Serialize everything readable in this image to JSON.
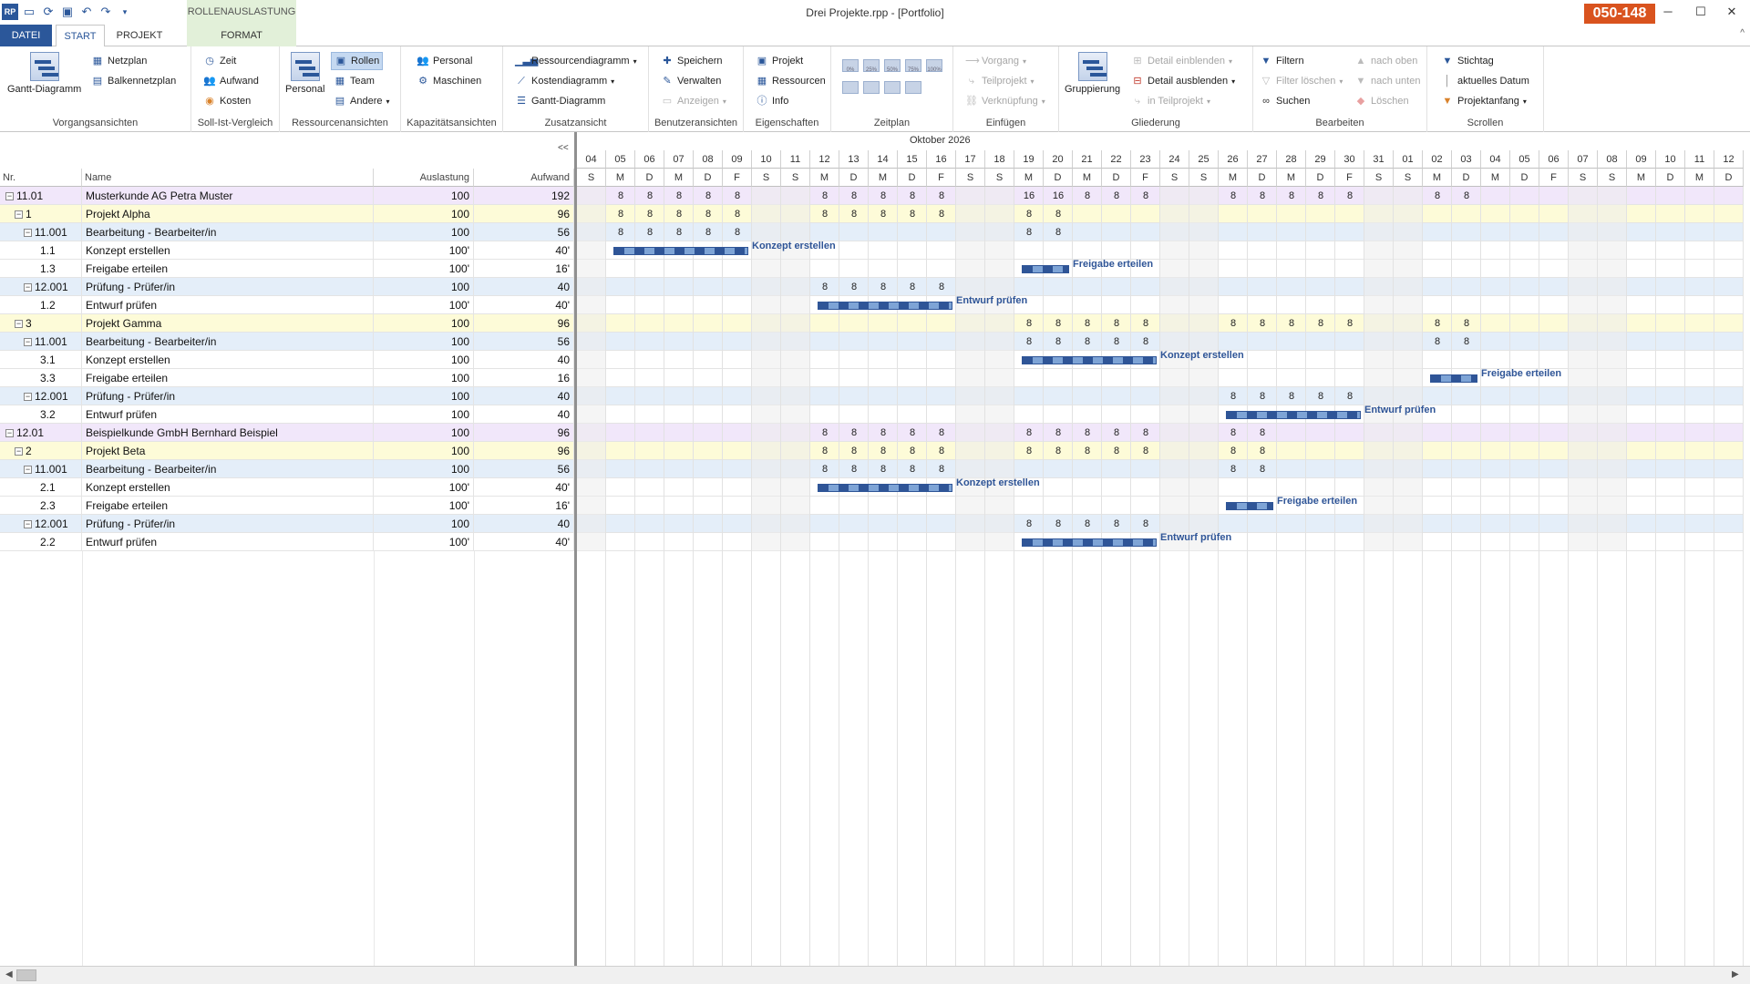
{
  "window": {
    "title": "Drei Projekte.rpp - [Portfolio]",
    "context_tab": "ROLLENAUSLASTUNG",
    "badge": "050-148",
    "app_icon": "RP"
  },
  "quick_access": [
    "open-folder-icon",
    "refresh-icon",
    "save-icon",
    "undo-icon",
    "redo-icon",
    "customize-icon"
  ],
  "tabs": {
    "file": "DATEI",
    "start": "START",
    "project": "PROJEKT",
    "format": "FORMAT"
  },
  "ribbon": {
    "vorgangsansichten": {
      "label": "Vorgangsansichten",
      "gantt": "Gantt-Diagramm",
      "netzplan": "Netzplan",
      "balkennetzplan": "Balkennetzplan"
    },
    "soll_ist": {
      "label": "Soll-Ist-Vergleich",
      "zeit": "Zeit",
      "aufwand": "Aufwand",
      "kosten": "Kosten"
    },
    "ressourcen": {
      "label": "Ressourcenansichten",
      "personal": "Personal",
      "rollen": "Rollen",
      "team": "Team",
      "andere": "Andere"
    },
    "kapazitaet": {
      "label": "Kapazitätsansichten",
      "personal": "Personal",
      "maschinen": "Maschinen"
    },
    "zusatz": {
      "label": "Zusatzansicht",
      "ressourcendiagramm": "Ressourcendiagramm",
      "kostendiagramm": "Kostendiagramm",
      "gantt": "Gantt-Diagramm"
    },
    "benutzer": {
      "label": "Benutzeransichten",
      "speichern": "Speichern",
      "verwalten": "Verwalten",
      "anzeigen": "Anzeigen"
    },
    "eigenschaften": {
      "label": "Eigenschaften",
      "projekt": "Projekt",
      "ressourcen": "Ressourcen",
      "info": "Info"
    },
    "zeitplan": {
      "label": "Zeitplan",
      "percents": [
        "0%",
        "25%",
        "50%",
        "75%",
        "100%"
      ]
    },
    "einfuegen": {
      "label": "Einfügen",
      "vorgang": "Vorgang",
      "teilprojekt": "Teilprojekt",
      "verknuepfung": "Verknüpfung"
    },
    "gliederung": {
      "label": "Gliederung",
      "gruppierung": "Gruppierung",
      "detail_ein": "Detail einblenden",
      "detail_aus": "Detail ausblenden",
      "in_teilprojekt": "in Teilprojekt"
    },
    "bearbeiten": {
      "label": "Bearbeiten",
      "filtern": "Filtern",
      "filter_loeschen": "Filter löschen",
      "suchen": "Suchen",
      "nach_oben": "nach oben",
      "nach_unten": "nach unten",
      "loeschen": "Löschen"
    },
    "scrollen": {
      "label": "Scrollen",
      "stichtag": "Stichtag",
      "aktuelles_datum": "aktuelles Datum",
      "projektanfang": "Projektanfang"
    }
  },
  "grid": {
    "collapse_label": "<<",
    "columns": {
      "nr": "Nr.",
      "name": "Name",
      "auslastung": "Auslastung",
      "aufwand": "Aufwand"
    },
    "rows": [
      {
        "type": "customer",
        "level": 0,
        "toggle": "⊟",
        "nr": "11.01",
        "name": "Musterkunde AG Petra Muster",
        "auslastung": "100",
        "aufwand": "192"
      },
      {
        "type": "project",
        "level": 1,
        "toggle": "⊟",
        "nr": "1",
        "name": "Projekt Alpha",
        "auslastung": "100",
        "aufwand": "96"
      },
      {
        "type": "role",
        "level": 2,
        "toggle": "⊟",
        "nr": "11.001",
        "name": "Bearbeitung - Bearbeiter/in",
        "auslastung": "100",
        "aufwand": "56"
      },
      {
        "type": "task",
        "level": 3,
        "toggle": "",
        "nr": "1.1",
        "name": "Konzept erstellen",
        "auslastung": "100'",
        "aufwand": "40'"
      },
      {
        "type": "task",
        "level": 3,
        "toggle": "",
        "nr": "1.3",
        "name": "Freigabe erteilen",
        "auslastung": "100'",
        "aufwand": "16'"
      },
      {
        "type": "role",
        "level": 2,
        "toggle": "⊟",
        "nr": "12.001",
        "name": "Prüfung - Prüfer/in",
        "auslastung": "100",
        "aufwand": "40"
      },
      {
        "type": "task",
        "level": 3,
        "toggle": "",
        "nr": "1.2",
        "name": "Entwurf prüfen",
        "auslastung": "100'",
        "aufwand": "40'"
      },
      {
        "type": "project",
        "level": 1,
        "toggle": "⊟",
        "nr": "3",
        "name": "Projekt Gamma",
        "auslastung": "100",
        "aufwand": "96"
      },
      {
        "type": "role",
        "level": 2,
        "toggle": "⊟",
        "nr": "11.001",
        "name": "Bearbeitung - Bearbeiter/in",
        "auslastung": "100",
        "aufwand": "56"
      },
      {
        "type": "task",
        "level": 3,
        "toggle": "",
        "nr": "3.1",
        "name": "Konzept erstellen",
        "auslastung": "100",
        "aufwand": "40"
      },
      {
        "type": "task",
        "level": 3,
        "toggle": "",
        "nr": "3.3",
        "name": "Freigabe erteilen",
        "auslastung": "100",
        "aufwand": "16"
      },
      {
        "type": "role",
        "level": 2,
        "toggle": "⊟",
        "nr": "12.001",
        "name": "Prüfung - Prüfer/in",
        "auslastung": "100",
        "aufwand": "40"
      },
      {
        "type": "task",
        "level": 3,
        "toggle": "",
        "nr": "3.2",
        "name": "Entwurf prüfen",
        "auslastung": "100",
        "aufwand": "40"
      },
      {
        "type": "customer",
        "level": 0,
        "toggle": "⊟",
        "nr": "12.01",
        "name": "Beispielkunde GmbH Bernhard Beispiel",
        "auslastung": "100",
        "aufwand": "96"
      },
      {
        "type": "project",
        "level": 1,
        "toggle": "⊟",
        "nr": "2",
        "name": "Projekt Beta",
        "auslastung": "100",
        "aufwand": "96"
      },
      {
        "type": "role",
        "level": 2,
        "toggle": "⊟",
        "nr": "11.001",
        "name": "Bearbeitung - Bearbeiter/in",
        "auslastung": "100",
        "aufwand": "56"
      },
      {
        "type": "task",
        "level": 3,
        "toggle": "",
        "nr": "2.1",
        "name": "Konzept erstellen",
        "auslastung": "100'",
        "aufwand": "40'"
      },
      {
        "type": "task",
        "level": 3,
        "toggle": "",
        "nr": "2.3",
        "name": "Freigabe erteilen",
        "auslastung": "100'",
        "aufwand": "16'"
      },
      {
        "type": "role",
        "level": 2,
        "toggle": "⊟",
        "nr": "12.001",
        "name": "Prüfung - Prüfer/in",
        "auslastung": "100",
        "aufwand": "40"
      },
      {
        "type": "task",
        "level": 3,
        "toggle": "",
        "nr": "2.2",
        "name": "Entwurf prüfen",
        "auslastung": "100'",
        "aufwand": "40'"
      }
    ]
  },
  "timeline": {
    "month": "Oktober 2026",
    "days": [
      {
        "d": "04",
        "w": "S"
      },
      {
        "d": "05",
        "w": "M"
      },
      {
        "d": "06",
        "w": "D"
      },
      {
        "d": "07",
        "w": "M"
      },
      {
        "d": "08",
        "w": "D"
      },
      {
        "d": "09",
        "w": "F"
      },
      {
        "d": "10",
        "w": "S"
      },
      {
        "d": "11",
        "w": "S"
      },
      {
        "d": "12",
        "w": "M"
      },
      {
        "d": "13",
        "w": "D"
      },
      {
        "d": "14",
        "w": "M"
      },
      {
        "d": "15",
        "w": "D"
      },
      {
        "d": "16",
        "w": "F"
      },
      {
        "d": "17",
        "w": "S"
      },
      {
        "d": "18",
        "w": "S"
      },
      {
        "d": "19",
        "w": "M"
      },
      {
        "d": "20",
        "w": "D"
      },
      {
        "d": "21",
        "w": "M"
      },
      {
        "d": "22",
        "w": "D"
      },
      {
        "d": "23",
        "w": "F"
      },
      {
        "d": "24",
        "w": "S"
      },
      {
        "d": "25",
        "w": "S"
      },
      {
        "d": "26",
        "w": "M"
      },
      {
        "d": "27",
        "w": "D"
      },
      {
        "d": "28",
        "w": "M"
      },
      {
        "d": "29",
        "w": "D"
      },
      {
        "d": "30",
        "w": "F"
      },
      {
        "d": "31",
        "w": "S"
      },
      {
        "d": "01",
        "w": "S"
      },
      {
        "d": "02",
        "w": "M"
      },
      {
        "d": "03",
        "w": "D"
      },
      {
        "d": "04",
        "w": "M"
      },
      {
        "d": "05",
        "w": "D"
      },
      {
        "d": "06",
        "w": "F"
      },
      {
        "d": "07",
        "w": "S"
      },
      {
        "d": "08",
        "w": "S"
      },
      {
        "d": "09",
        "w": "M"
      },
      {
        "d": "10",
        "w": "D"
      },
      {
        "d": "11",
        "w": "M"
      },
      {
        "d": "12",
        "w": "D"
      }
    ],
    "row_values": [
      {
        "row": 0,
        "vals": [
          [
            1,
            "8"
          ],
          [
            2,
            "8"
          ],
          [
            3,
            "8"
          ],
          [
            4,
            "8"
          ],
          [
            5,
            "8"
          ],
          [
            8,
            "8"
          ],
          [
            9,
            "8"
          ],
          [
            10,
            "8"
          ],
          [
            11,
            "8"
          ],
          [
            12,
            "8"
          ],
          [
            15,
            "16"
          ],
          [
            16,
            "16"
          ],
          [
            17,
            "8"
          ],
          [
            18,
            "8"
          ],
          [
            19,
            "8"
          ],
          [
            22,
            "8"
          ],
          [
            23,
            "8"
          ],
          [
            24,
            "8"
          ],
          [
            25,
            "8"
          ],
          [
            26,
            "8"
          ],
          [
            29,
            "8"
          ],
          [
            30,
            "8"
          ]
        ]
      },
      {
        "row": 1,
        "vals": [
          [
            1,
            "8"
          ],
          [
            2,
            "8"
          ],
          [
            3,
            "8"
          ],
          [
            4,
            "8"
          ],
          [
            5,
            "8"
          ],
          [
            8,
            "8"
          ],
          [
            9,
            "8"
          ],
          [
            10,
            "8"
          ],
          [
            11,
            "8"
          ],
          [
            12,
            "8"
          ],
          [
            15,
            "8"
          ],
          [
            16,
            "8"
          ]
        ]
      },
      {
        "row": 2,
        "vals": [
          [
            1,
            "8"
          ],
          [
            2,
            "8"
          ],
          [
            3,
            "8"
          ],
          [
            4,
            "8"
          ],
          [
            5,
            "8"
          ],
          [
            15,
            "8"
          ],
          [
            16,
            "8"
          ]
        ]
      },
      {
        "row": 5,
        "vals": [
          [
            8,
            "8"
          ],
          [
            9,
            "8"
          ],
          [
            10,
            "8"
          ],
          [
            11,
            "8"
          ],
          [
            12,
            "8"
          ]
        ]
      },
      {
        "row": 7,
        "vals": [
          [
            15,
            "8"
          ],
          [
            16,
            "8"
          ],
          [
            17,
            "8"
          ],
          [
            18,
            "8"
          ],
          [
            19,
            "8"
          ],
          [
            22,
            "8"
          ],
          [
            23,
            "8"
          ],
          [
            24,
            "8"
          ],
          [
            25,
            "8"
          ],
          [
            26,
            "8"
          ],
          [
            29,
            "8"
          ],
          [
            30,
            "8"
          ]
        ]
      },
      {
        "row": 8,
        "vals": [
          [
            15,
            "8"
          ],
          [
            16,
            "8"
          ],
          [
            17,
            "8"
          ],
          [
            18,
            "8"
          ],
          [
            19,
            "8"
          ],
          [
            29,
            "8"
          ],
          [
            30,
            "8"
          ]
        ]
      },
      {
        "row": 11,
        "vals": [
          [
            22,
            "8"
          ],
          [
            23,
            "8"
          ],
          [
            24,
            "8"
          ],
          [
            25,
            "8"
          ],
          [
            26,
            "8"
          ]
        ]
      },
      {
        "row": 13,
        "vals": [
          [
            8,
            "8"
          ],
          [
            9,
            "8"
          ],
          [
            10,
            "8"
          ],
          [
            11,
            "8"
          ],
          [
            12,
            "8"
          ],
          [
            15,
            "8"
          ],
          [
            16,
            "8"
          ],
          [
            17,
            "8"
          ],
          [
            18,
            "8"
          ],
          [
            19,
            "8"
          ],
          [
            22,
            "8"
          ],
          [
            23,
            "8"
          ]
        ]
      },
      {
        "row": 14,
        "vals": [
          [
            8,
            "8"
          ],
          [
            9,
            "8"
          ],
          [
            10,
            "8"
          ],
          [
            11,
            "8"
          ],
          [
            12,
            "8"
          ],
          [
            15,
            "8"
          ],
          [
            16,
            "8"
          ],
          [
            17,
            "8"
          ],
          [
            18,
            "8"
          ],
          [
            19,
            "8"
          ],
          [
            22,
            "8"
          ],
          [
            23,
            "8"
          ]
        ]
      },
      {
        "row": 15,
        "vals": [
          [
            8,
            "8"
          ],
          [
            9,
            "8"
          ],
          [
            10,
            "8"
          ],
          [
            11,
            "8"
          ],
          [
            12,
            "8"
          ],
          [
            22,
            "8"
          ],
          [
            23,
            "8"
          ]
        ]
      },
      {
        "row": 18,
        "vals": [
          [
            15,
            "8"
          ],
          [
            16,
            "8"
          ],
          [
            17,
            "8"
          ],
          [
            18,
            "8"
          ],
          [
            19,
            "8"
          ]
        ]
      }
    ],
    "bars": [
      {
        "row": 3,
        "start": 1,
        "end": 5,
        "label": "Konzept erstellen"
      },
      {
        "row": 4,
        "start": 15,
        "end": 16,
        "label": "Freigabe erteilen"
      },
      {
        "row": 6,
        "start": 8,
        "end": 12,
        "label": "Entwurf prüfen"
      },
      {
        "row": 9,
        "start": 15,
        "end": 19,
        "label": "Konzept erstellen"
      },
      {
        "row": 10,
        "start": 29,
        "end": 30,
        "label": "Freigabe erteilen"
      },
      {
        "row": 12,
        "start": 22,
        "end": 26,
        "label": "Entwurf prüfen"
      },
      {
        "row": 16,
        "start": 8,
        "end": 12,
        "label": "Konzept erstellen"
      },
      {
        "row": 17,
        "start": 22,
        "end": 23,
        "label": "Freigabe erteilen"
      },
      {
        "row": 19,
        "start": 15,
        "end": 19,
        "label": "Entwurf prüfen"
      }
    ]
  }
}
